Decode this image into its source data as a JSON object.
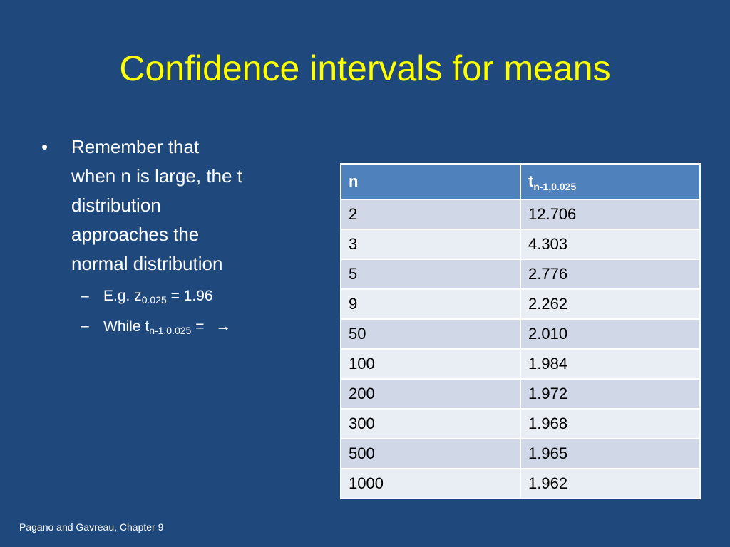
{
  "slide": {
    "title": "Confidence intervals for means",
    "bullet": {
      "marker": "•",
      "lines": [
        "Remember that",
        "when n is large, the t",
        "distribution",
        "approaches the",
        "normal distribution"
      ]
    },
    "sub_bullets": [
      {
        "marker": "–",
        "prefix": "E.g. z",
        "subscript": "0.025",
        "suffix": " = 1.96"
      },
      {
        "marker": "–",
        "prefix": "While t",
        "subscript": "n-1,0.025",
        "suffix": " = ",
        "arrow": "→"
      }
    ],
    "table": {
      "header": {
        "col1": "n",
        "col2_base": "t",
        "col2_subscript": "n-1,0.025"
      },
      "rows": [
        [
          "2",
          "12.706"
        ],
        [
          "3",
          "4.303"
        ],
        [
          "5",
          "2.776"
        ],
        [
          "9",
          "2.262"
        ],
        [
          "50",
          "2.010"
        ],
        [
          "100",
          "1.984"
        ],
        [
          "200",
          "1.972"
        ],
        [
          "300",
          "1.968"
        ],
        [
          "500",
          "1.965"
        ],
        [
          "1000",
          "1.962"
        ]
      ]
    },
    "footer": "Pagano and Gavreau, Chapter 9",
    "colors": {
      "background": "#1f497d",
      "title": "#ffff00",
      "header_fill": "#4f81bd",
      "row_odd": "#d0d8e8",
      "row_even": "#e9edf4"
    }
  }
}
